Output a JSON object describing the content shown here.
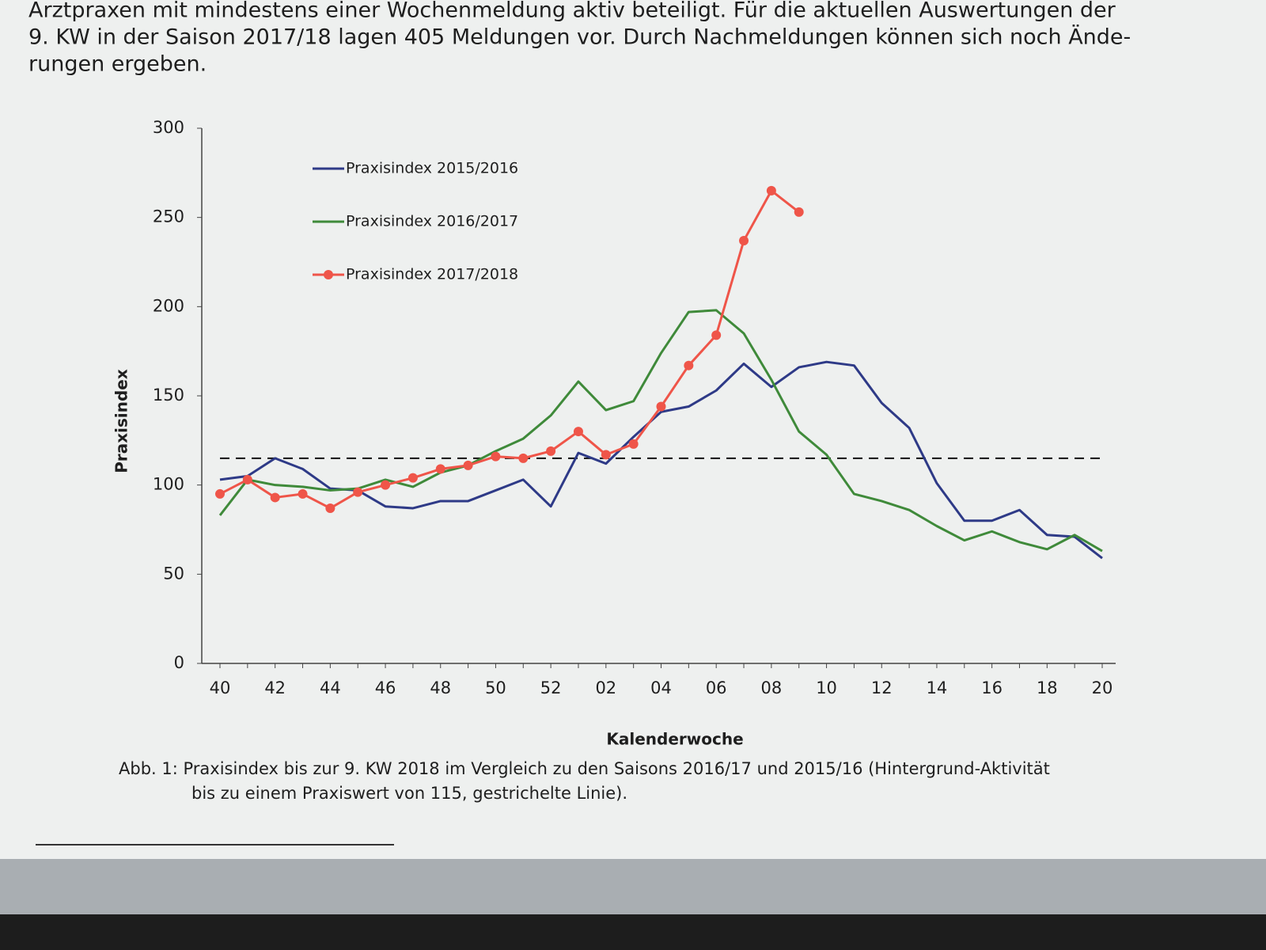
{
  "document": {
    "paragraph": [
      "Arztpraxen mit mindestens einer Wochenmeldung aktiv beteiligt. Für die aktuellen Auswertungen der",
      "9. KW in der Saison 2017/18 lagen 405 Meldungen vor. Durch Nachmeldungen können sich noch Ände-",
      "rungen ergeben."
    ],
    "caption": [
      "Abb. 1: Praxisindex bis zur 9. KW 2018 im Vergleich zu den Saisons 2016/17 und 2015/16 (Hintergrund-Aktivität",
      "bis zu einem Praxiswert von 115, gestrichelte Linie)."
    ]
  },
  "chart_data": {
    "type": "line",
    "y_label": "Praxisindex",
    "x_label": "Kalenderwoche",
    "categories": [
      "40",
      null,
      "42",
      null,
      "44",
      null,
      "46",
      null,
      "48",
      null,
      "50",
      null,
      "52",
      null,
      "02",
      null,
      "04",
      null,
      "06",
      null,
      "08",
      null,
      "10",
      null,
      "12",
      null,
      "14",
      null,
      "16",
      null,
      "18",
      null,
      "20"
    ],
    "series": [
      {
        "name": "Praxisindex 2015/2016",
        "color": "#2e3a87",
        "values": [
          103,
          105,
          115,
          109,
          98,
          97,
          88,
          87,
          91,
          91,
          97,
          103,
          88,
          118,
          112,
          127,
          141,
          144,
          153,
          168,
          155,
          166,
          169,
          167,
          146,
          132,
          101,
          80,
          80,
          86,
          72,
          71,
          59
        ]
      },
      {
        "name": "Praxisindex 2016/2017",
        "color": "#3f8a3a",
        "values": [
          83,
          103,
          100,
          99,
          97,
          98,
          103,
          99,
          107,
          111,
          119,
          126,
          139,
          158,
          142,
          147,
          174,
          197,
          198,
          185,
          159,
          130,
          117,
          95,
          91,
          86,
          77,
          69,
          74,
          68,
          64,
          72,
          63
        ]
      },
      {
        "name": "Praxisindex 2017/2018",
        "color": "#ef5549",
        "markers": true,
        "values": [
          95,
          103,
          93,
          95,
          87,
          96,
          100,
          104,
          109,
          111,
          116,
          115,
          119,
          130,
          117,
          123,
          144,
          167,
          184,
          237,
          265,
          253,
          null,
          null,
          null,
          null,
          null,
          null,
          null,
          null,
          null,
          null,
          null
        ]
      }
    ],
    "reference_line": 115,
    "ylim": [
      0,
      300
    ],
    "yticks": [
      0,
      50,
      100,
      150,
      200,
      250,
      300
    ],
    "legend": "upper left"
  }
}
